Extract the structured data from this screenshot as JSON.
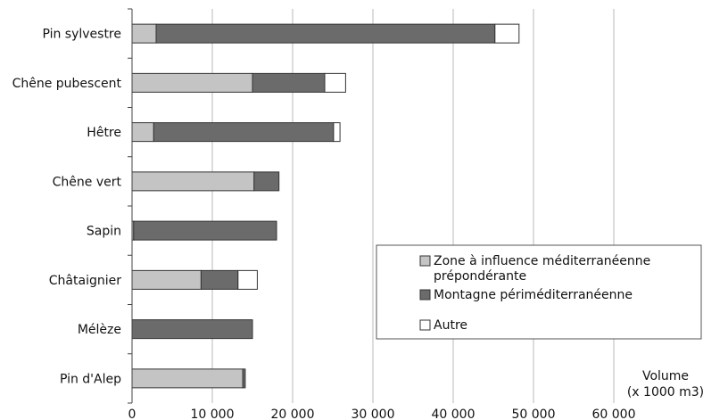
{
  "chart_data": {
    "type": "bar",
    "orientation": "horizontal",
    "stacked": true,
    "categories": [
      "Pin sylvestre",
      "Chêne pubescent",
      "Hêtre",
      "Chêne vert",
      "Sapin",
      "Châtaignier",
      "Mélèze",
      "Pin d'Alep"
    ],
    "series": [
      {
        "name": "Zone à influence méditerranéenne prépondérante",
        "values": [
          3000,
          15000,
          2700,
          15200,
          200,
          8600,
          0,
          13800
        ],
        "color": "#c4c4c4"
      },
      {
        "name": "Montagne périméditerranéenne",
        "values": [
          42200,
          9000,
          22400,
          3100,
          17800,
          4600,
          15000,
          300
        ],
        "color": "#6b6b6b"
      },
      {
        "name": "Autre",
        "values": [
          3000,
          2600,
          800,
          0,
          0,
          2400,
          0,
          0
        ],
        "color": "#ffffff"
      }
    ],
    "legend_lines": [
      [
        "Zone à influence méditerranéenne",
        "prépondérante"
      ],
      [
        "Montagne périméditerranéenne"
      ],
      [
        "Autre"
      ]
    ],
    "xlabel": "Volume",
    "xlabel_unit": "(x 1000 m3)",
    "xlim": [
      0,
      60000
    ],
    "xticks": [
      0,
      10000,
      20000,
      30000,
      40000,
      50000,
      60000
    ],
    "xtick_labels": [
      "0",
      "10 000",
      "20 000",
      "30 000",
      "40 000",
      "50 000",
      "60 000"
    ],
    "grid": "vertical",
    "legend_position": "right"
  }
}
